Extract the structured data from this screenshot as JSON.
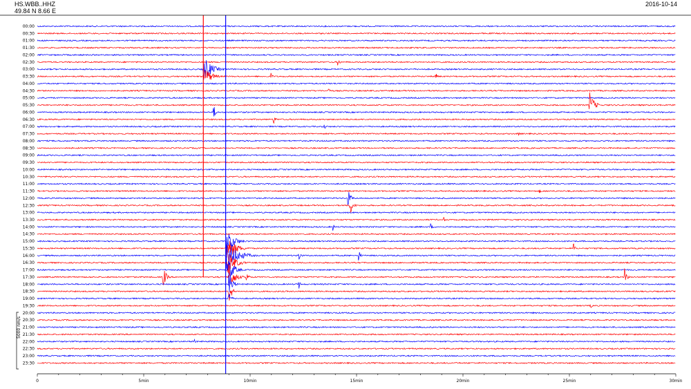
{
  "header": {
    "station": "HS.WBB..HHZ",
    "coords": "49.84 N 8.66 E",
    "date": "2016-10-14"
  },
  "chart_data": {
    "type": "line",
    "title": "",
    "xlabel": "",
    "ylabel": "",
    "x_ticks": [
      "0",
      "5min",
      "10min",
      "15min",
      "20min",
      "25min",
      "30min"
    ],
    "xlim": [
      0,
      30
    ],
    "scale_label": "5000 nm/s",
    "row_labels": [
      "00:00",
      "00:30",
      "01:00",
      "01:30",
      "02:00",
      "02:30",
      "03:00",
      "03:30",
      "04:00",
      "04:30",
      "05:00",
      "05:30",
      "06:00",
      "06:30",
      "07:00",
      "07:30",
      "08:00",
      "08:30",
      "09:00",
      "09:30",
      "10:00",
      "10:30",
      "11:00",
      "11:30",
      "12:00",
      "12:30",
      "13:00",
      "13:30",
      "14:00",
      "14:30",
      "15:00",
      "15:30",
      "16:00",
      "16:30",
      "17:00",
      "17:30",
      "18:00",
      "18:30",
      "19:00",
      "19:30",
      "20:00",
      "20:30",
      "21:00",
      "21:30",
      "22:00",
      "22:30",
      "23:00",
      "23:30"
    ],
    "trace_colors": [
      "#0000ff",
      "#ff0000"
    ],
    "markers": [
      {
        "minute": 7.8,
        "color": "#ff0000",
        "from_row": 0,
        "to_row": 35
      },
      {
        "minute": 8.85,
        "color": "#0000ff",
        "from_row": 0,
        "to_row": 48
      }
    ],
    "events": [
      {
        "row": 6,
        "minute": 7.8,
        "amp": 1.0,
        "dur": 1.1
      },
      {
        "row": 7,
        "minute": 7.85,
        "amp": 0.7,
        "dur": 1.0
      },
      {
        "row": 5,
        "minute": 14.1,
        "amp": 0.35,
        "dur": 0.3
      },
      {
        "row": 7,
        "minute": 18.7,
        "amp": 0.3,
        "dur": 0.3
      },
      {
        "row": 7,
        "minute": 11.0,
        "amp": 0.25,
        "dur": 0.2
      },
      {
        "row": 9,
        "minute": 13.7,
        "amp": 0.25,
        "dur": 0.2
      },
      {
        "row": 11,
        "minute": 25.95,
        "amp": 1.0,
        "dur": 0.6
      },
      {
        "row": 12,
        "minute": 8.3,
        "amp": 0.5,
        "dur": 0.3
      },
      {
        "row": 13,
        "minute": 11.1,
        "amp": 0.35,
        "dur": 0.3
      },
      {
        "row": 14,
        "minute": 13.5,
        "amp": 0.2,
        "dur": 0.2
      },
      {
        "row": 15,
        "minute": 22.6,
        "amp": 0.2,
        "dur": 0.2
      },
      {
        "row": 23,
        "minute": 23.6,
        "amp": 0.2,
        "dur": 0.2
      },
      {
        "row": 24,
        "minute": 14.6,
        "amp": 0.6,
        "dur": 0.4
      },
      {
        "row": 25,
        "minute": 14.7,
        "amp": 0.7,
        "dur": 0.4
      },
      {
        "row": 27,
        "minute": 19.1,
        "amp": 0.2,
        "dur": 0.2
      },
      {
        "row": 28,
        "minute": 13.9,
        "amp": 0.25,
        "dur": 0.2
      },
      {
        "row": 28,
        "minute": 18.5,
        "amp": 0.2,
        "dur": 0.3
      },
      {
        "row": 30,
        "minute": 8.9,
        "amp": 1.0,
        "dur": 1.0
      },
      {
        "row": 31,
        "minute": 8.9,
        "amp": 1.0,
        "dur": 1.2
      },
      {
        "row": 32,
        "minute": 8.9,
        "amp": 1.0,
        "dur": 1.6
      },
      {
        "row": 33,
        "minute": 8.95,
        "amp": 1.0,
        "dur": 1.0
      },
      {
        "row": 34,
        "minute": 8.95,
        "amp": 1.0,
        "dur": 0.8
      },
      {
        "row": 35,
        "minute": 9.0,
        "amp": 1.0,
        "dur": 0.8
      },
      {
        "row": 36,
        "minute": 9.0,
        "amp": 1.0,
        "dur": 0.5
      },
      {
        "row": 37,
        "minute": 9.0,
        "amp": 1.0,
        "dur": 0.4
      },
      {
        "row": 38,
        "minute": 9.0,
        "amp": 0.6,
        "dur": 0.3
      },
      {
        "row": 31,
        "minute": 25.2,
        "amp": 0.4,
        "dur": 0.2
      },
      {
        "row": 32,
        "minute": 12.3,
        "amp": 0.35,
        "dur": 0.3
      },
      {
        "row": 32,
        "minute": 15.1,
        "amp": 0.4,
        "dur": 0.3
      },
      {
        "row": 35,
        "minute": 5.9,
        "amp": 0.9,
        "dur": 0.4
      },
      {
        "row": 35,
        "minute": 9.8,
        "amp": 0.5,
        "dur": 0.3
      },
      {
        "row": 35,
        "minute": 27.6,
        "amp": 0.6,
        "dur": 0.3
      },
      {
        "row": 36,
        "minute": 12.3,
        "amp": 0.3,
        "dur": 0.2
      },
      {
        "row": 39,
        "minute": 26.0,
        "amp": 0.2,
        "dur": 0.2
      },
      {
        "row": 44,
        "minute": 7.4,
        "amp": 0.2,
        "dur": 0.2
      }
    ]
  }
}
